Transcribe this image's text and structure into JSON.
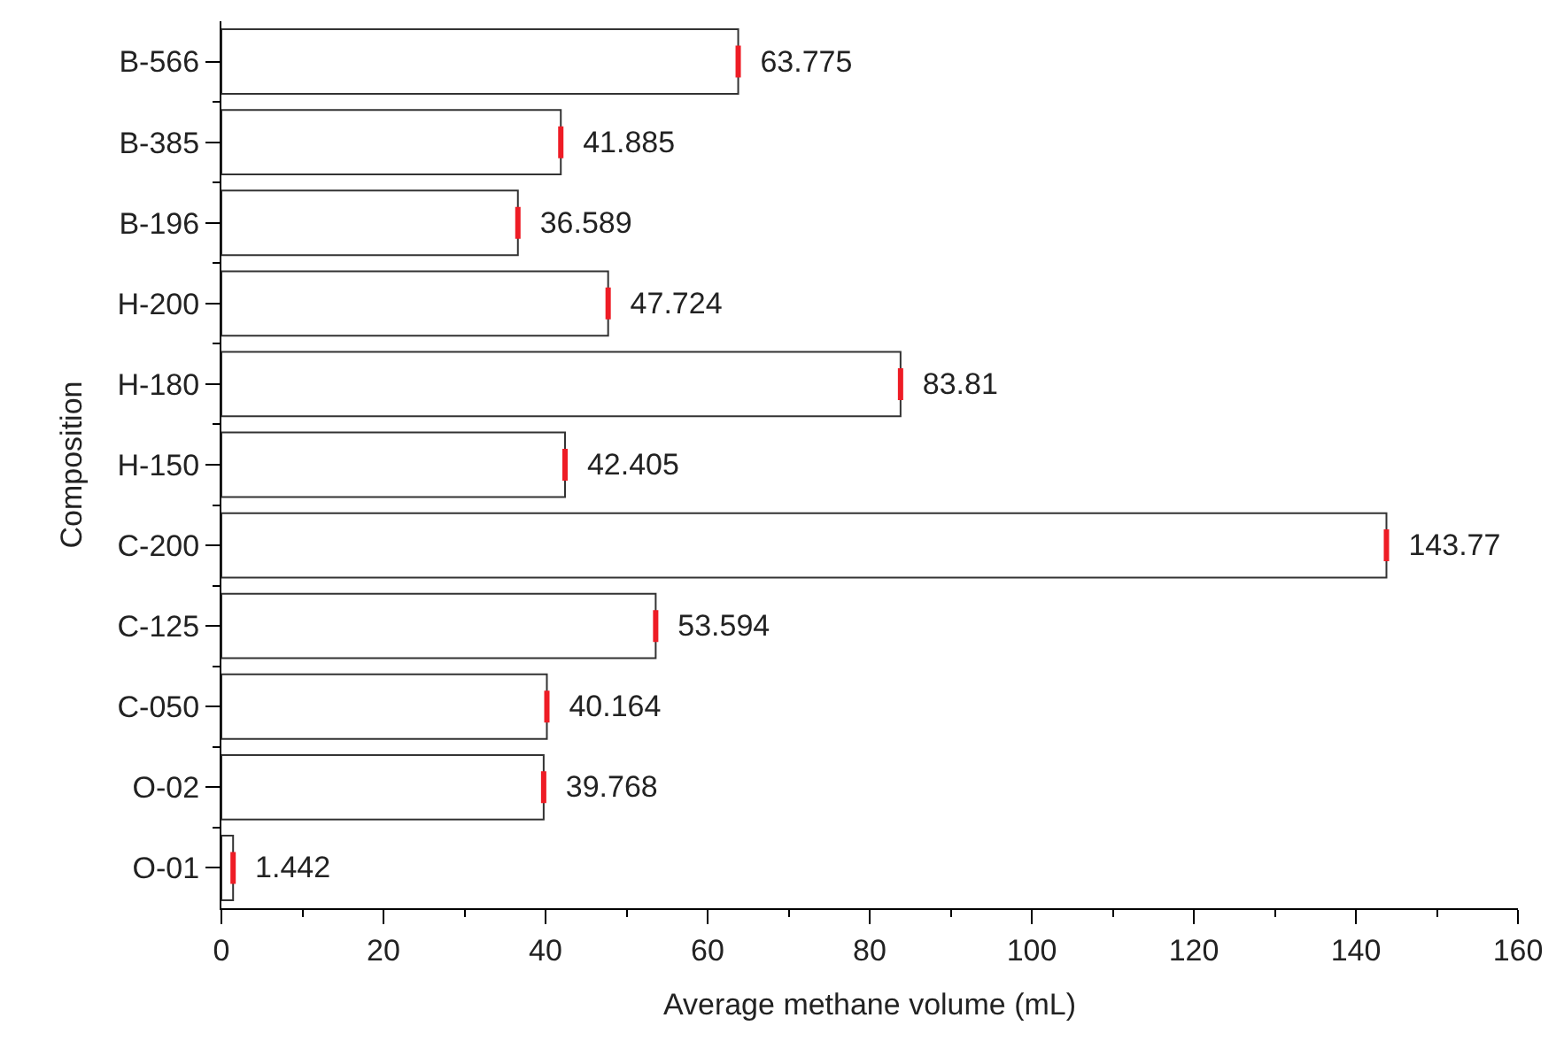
{
  "chart_data": {
    "type": "bar",
    "orientation": "horizontal",
    "xlabel": "Average methane volume (mL)",
    "ylabel": "Composition",
    "categories": [
      "B-566",
      "B-385",
      "B-196",
      "H-200",
      "H-180",
      "H-150",
      "C-200",
      "C-125",
      "C-050",
      "O-02",
      "O-01"
    ],
    "values": [
      63.775,
      41.885,
      36.589,
      47.724,
      83.81,
      42.405,
      143.77,
      53.594,
      40.164,
      39.768,
      1.442
    ],
    "errors": [
      0,
      0,
      0,
      0,
      0,
      0,
      0,
      0,
      0,
      0,
      0
    ],
    "color": "#ffffff",
    "data_labels": true,
    "xlim": [
      0,
      160
    ],
    "xticks": [
      0,
      20,
      40,
      60,
      80,
      100,
      120,
      140,
      160
    ]
  }
}
